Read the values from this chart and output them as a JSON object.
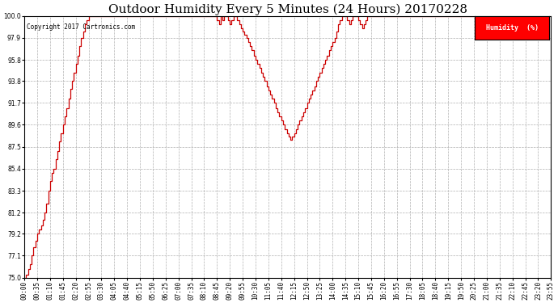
{
  "title": "Outdoor Humidity Every 5 Minutes (24 Hours) 20170228",
  "copyright": "Copyright 2017 Cartronics.com",
  "legend_label": "Humidity  (%)",
  "legend_bg": "#ff0000",
  "legend_text_color": "#ffffff",
  "line_color": "#cc0000",
  "bg_color": "#ffffff",
  "grid_color": "#b0b0b0",
  "ylim": [
    75.0,
    100.0
  ],
  "yticks": [
    75.0,
    77.1,
    79.2,
    81.2,
    83.3,
    85.4,
    87.5,
    89.6,
    91.7,
    93.8,
    95.8,
    97.9,
    100.0
  ],
  "title_fontsize": 11,
  "tick_fontsize": 5.5,
  "humidity_data": [
    75.0,
    75.3,
    75.8,
    76.3,
    77.1,
    77.9,
    78.5,
    79.2,
    79.6,
    80.0,
    80.5,
    81.2,
    82.1,
    83.3,
    84.2,
    85.0,
    85.4,
    86.3,
    87.1,
    88.0,
    88.8,
    89.6,
    90.4,
    91.2,
    92.1,
    93.0,
    93.8,
    94.6,
    95.4,
    96.2,
    97.1,
    97.9,
    98.5,
    99.2,
    99.6,
    100.0,
    100.0,
    100.0,
    100.0,
    100.0,
    100.0,
    100.0,
    100.0,
    100.0,
    100.0,
    100.0,
    100.0,
    100.0,
    100.0,
    100.0,
    100.0,
    100.0,
    100.0,
    100.0,
    100.0,
    100.0,
    100.0,
    100.0,
    100.0,
    100.0,
    100.0,
    100.0,
    100.0,
    100.0,
    100.0,
    100.0,
    100.0,
    100.0,
    100.0,
    100.0,
    100.0,
    100.0,
    100.0,
    100.0,
    100.0,
    100.0,
    100.0,
    100.0,
    100.0,
    100.0,
    100.0,
    100.0,
    100.0,
    100.0,
    100.0,
    100.0,
    100.0,
    100.0,
    100.0,
    100.0,
    100.0,
    100.0,
    100.0,
    100.0,
    100.0,
    100.0,
    100.0,
    100.0,
    100.0,
    100.0,
    100.0,
    100.0,
    100.0,
    100.0,
    100.0,
    99.6,
    99.2,
    100.0,
    99.6,
    100.0,
    100.0,
    99.6,
    99.2,
    99.6,
    100.0,
    100.0,
    99.6,
    99.2,
    98.8,
    98.5,
    98.2,
    97.9,
    97.5,
    97.1,
    96.7,
    96.2,
    95.8,
    95.4,
    95.0,
    94.6,
    94.2,
    93.8,
    93.3,
    92.9,
    92.5,
    92.1,
    91.7,
    91.2,
    90.8,
    90.4,
    90.0,
    89.6,
    89.2,
    88.8,
    88.5,
    88.2,
    88.5,
    88.8,
    89.2,
    89.6,
    90.0,
    90.4,
    90.8,
    91.2,
    91.7,
    92.1,
    92.5,
    92.9,
    93.3,
    93.8,
    94.2,
    94.6,
    95.0,
    95.4,
    95.8,
    96.2,
    96.7,
    97.1,
    97.5,
    97.9,
    98.5,
    99.2,
    99.6,
    100.0,
    100.0,
    100.0,
    99.6,
    99.2,
    99.6,
    100.0,
    100.0,
    100.0,
    99.6,
    99.2,
    98.8,
    99.2,
    99.6,
    100.0,
    100.0,
    100.0,
    100.0,
    100.0,
    100.0,
    100.0,
    100.0,
    100.0,
    100.0,
    100.0,
    100.0,
    100.0,
    100.0,
    100.0,
    100.0,
    100.0,
    100.0,
    100.0,
    100.0,
    100.0,
    100.0,
    100.0,
    100.0,
    100.0,
    100.0,
    100.0,
    100.0,
    100.0,
    100.0,
    100.0,
    100.0,
    100.0,
    100.0,
    100.0,
    100.0,
    100.0,
    100.0,
    100.0,
    100.0,
    100.0,
    100.0,
    100.0,
    100.0,
    100.0,
    100.0,
    100.0,
    100.0,
    100.0,
    100.0,
    100.0,
    100.0,
    100.0,
    100.0,
    100.0,
    100.0,
    100.0,
    100.0,
    100.0,
    100.0,
    100.0,
    100.0,
    100.0,
    100.0,
    100.0,
    100.0,
    100.0,
    100.0,
    100.0,
    100.0,
    100.0,
    100.0,
    100.0,
    100.0,
    100.0,
    100.0,
    100.0,
    100.0,
    100.0,
    100.0,
    100.0,
    100.0,
    100.0,
    100.0,
    100.0,
    100.0,
    100.0,
    100.0,
    100.0,
    100.0,
    100.0,
    100.0,
    100.0,
    100.0
  ],
  "x_tick_labels": [
    "00:00",
    "00:35",
    "01:10",
    "01:45",
    "02:20",
    "02:55",
    "03:30",
    "04:05",
    "04:40",
    "05:15",
    "05:50",
    "06:25",
    "07:00",
    "07:35",
    "08:10",
    "08:45",
    "09:20",
    "09:55",
    "10:30",
    "11:05",
    "11:40",
    "12:15",
    "12:50",
    "13:25",
    "14:00",
    "14:35",
    "15:10",
    "15:45",
    "16:20",
    "16:55",
    "17:30",
    "18:05",
    "18:40",
    "19:15",
    "19:50",
    "20:25",
    "21:00",
    "21:35",
    "22:10",
    "22:45",
    "23:20",
    "23:55"
  ],
  "x_tick_positions": [
    0,
    7,
    14,
    21,
    28,
    35,
    42,
    49,
    56,
    63,
    70,
    77,
    84,
    91,
    98,
    105,
    112,
    119,
    126,
    133,
    140,
    147,
    154,
    161,
    168,
    175,
    182,
    189,
    196,
    203,
    210,
    217,
    224,
    231,
    238,
    245,
    252,
    259,
    266,
    273,
    280,
    287
  ]
}
